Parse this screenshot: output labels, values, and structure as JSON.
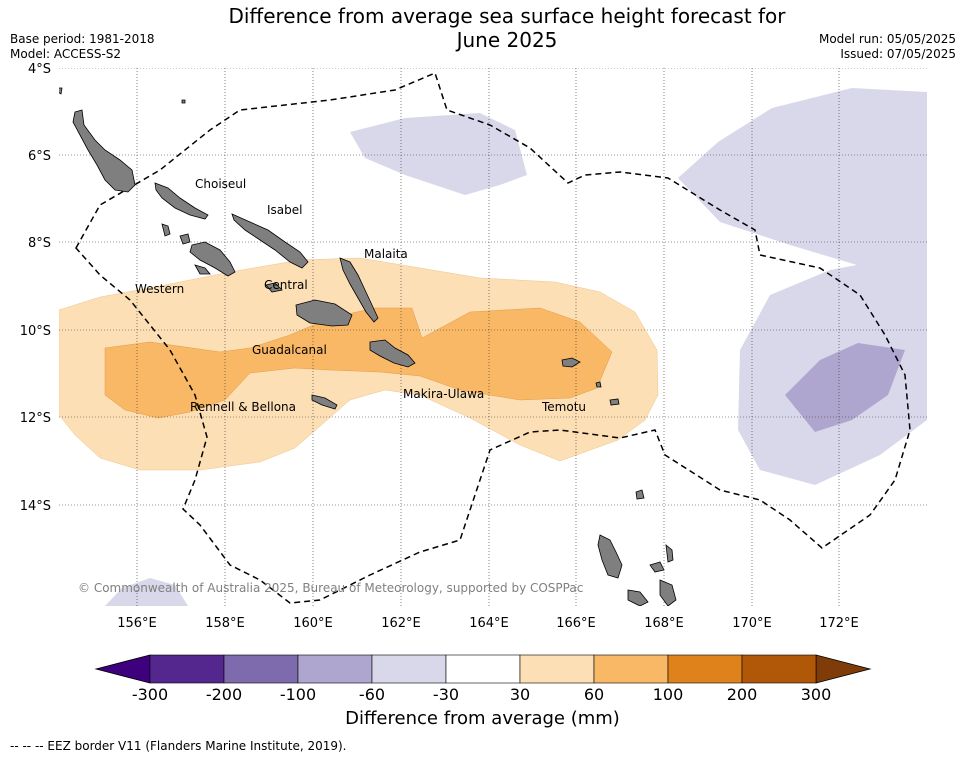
{
  "title_line1": "Difference from average sea surface height forecast for",
  "title_line2": "June 2025",
  "base_period": "Base period: 1981-2018",
  "model": "Model: ACCESS-S2",
  "model_run": "Model run: 05/05/2025",
  "issued": "Issued: 07/05/2025",
  "lat_labels": [
    "4°S",
    "6°S",
    "8°S",
    "10°S",
    "12°S",
    "14°S"
  ],
  "lon_labels": [
    "156°E",
    "158°E",
    "160°E",
    "162°E",
    "164°E",
    "166°E",
    "168°E",
    "170°E",
    "172°E"
  ],
  "provinces": [
    "Choiseul",
    "Isabel",
    "Malaita",
    "Western",
    "Central",
    "Guadalcanal",
    "Makira-Ulawa",
    "Rennell & Bellona",
    "Temotu"
  ],
  "copyright": "© Commonwealth of Australia 2025, Bureau of Meteorology, supported by COSPPac",
  "colorbar": {
    "ticks": [
      "-300",
      "-200",
      "-100",
      "-60",
      "-30",
      "30",
      "60",
      "100",
      "200",
      "300"
    ],
    "colors": [
      "#54278f",
      "#7d6bad",
      "#aea6cf",
      "#d8d8ea",
      "#ffffff",
      "#fddfb5",
      "#f9b865",
      "#e0821c",
      "#b15708"
    ],
    "under_color": "#3f007d",
    "over_color": "#7f3b08",
    "label": "Difference from average (mm)"
  },
  "footer": "--  --  -- EEZ border V11 (Flanders Marine Institute, 2019).",
  "chart_data": {
    "type": "map",
    "lon_range": [
      154.2,
      173.9
    ],
    "lat_range": [
      -4,
      -16.3
    ],
    "fill_classes_mm": [
      {
        "name": "30 to 60",
        "color": "#fddfb5"
      },
      {
        "name": "60 to 100",
        "color": "#f9b865"
      },
      {
        "name": "-60 to -30",
        "color": "#d8d8ea"
      },
      {
        "name": "-100 to -60",
        "color": "#aea6cf"
      }
    ]
  }
}
